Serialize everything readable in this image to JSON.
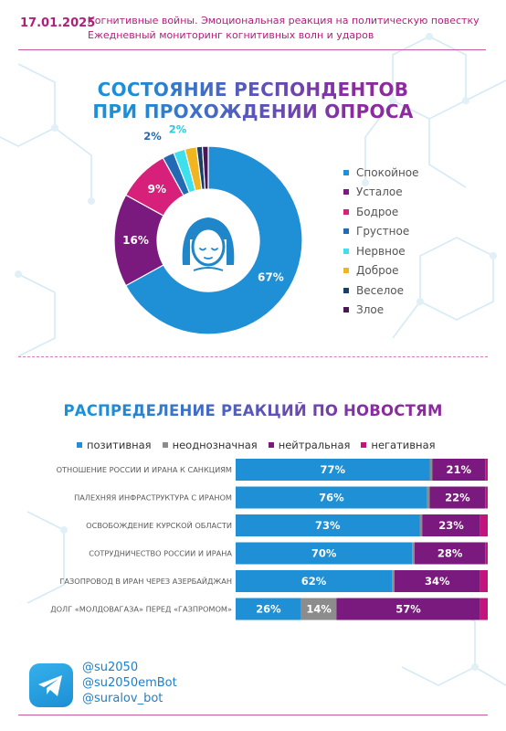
{
  "header": {
    "date": "17.01.2025",
    "line1": "Когнитивные войны. Эмоциональная реакция на политическую повестку",
    "line2": "Ежедневный мониторинг когнитивных волн и ударов"
  },
  "colors": {
    "blue": "#1f8fd6",
    "purple": "#7b1a7e",
    "pink": "#d6207a",
    "dark_blue": "#2469b3",
    "cyan": "#3fe0ee",
    "yellow": "#f0b51f",
    "navy": "#173e6d",
    "dark_purple": "#4b1656",
    "gray": "#8c8c8c",
    "magenta": "#c3147e"
  },
  "chart_data": [
    {
      "type": "pie",
      "title": "СОСТОЯНИЕ РЕСПОНДЕНТОВ ПРИ ПРОХОЖДЕНИИ ОПРОСА",
      "title_lines": [
        "СОСТОЯНИЕ РЕСПОНДЕНТОВ",
        "ПРИ ПРОХОЖДЕНИИ ОПРОСА"
      ],
      "donut": true,
      "center_icon": "woman-face-icon",
      "legend_position": "right",
      "slices": [
        {
          "label": "Спокойное",
          "value": 67,
          "display": "67%",
          "color": "#1f8fd6"
        },
        {
          "label": "Усталое",
          "value": 16,
          "display": "16%",
          "color": "#7b1a7e"
        },
        {
          "label": "Бодрое",
          "value": 9,
          "display": "9%",
          "color": "#d6207a"
        },
        {
          "label": "Грустное",
          "value": 2,
          "display": "2%",
          "color": "#2469b3"
        },
        {
          "label": "Нервное",
          "value": 2,
          "display": "2%",
          "color": "#3fe0ee"
        },
        {
          "label": "Доброе",
          "value": 2,
          "display": "",
          "color": "#f0b51f"
        },
        {
          "label": "Веселое",
          "value": 1,
          "display": "",
          "color": "#173e6d"
        },
        {
          "label": "Злое",
          "value": 1,
          "display": "",
          "color": "#4b1656"
        }
      ]
    },
    {
      "type": "bar",
      "orientation": "horizontal",
      "stacked": true,
      "title": "РАСПРЕДЕЛЕНИЕ РЕАКЦИЙ ПО НОВОСТЯМ",
      "legend_position": "top",
      "xlim": [
        0,
        100
      ],
      "categories": [
        "ОТНОШЕНИЕ РОССИИ И ИРАНА К САНКЦИЯМ",
        "ПАЛЕХНЯЯ ИНФРАСТРУКТУРА С ИРАНОМ",
        "ОСВОБОЖДЕНИЕ КУРСКОЙ ОБЛАСТИ",
        "СОТРУДНИЧЕСТВО РОССИИ И ИРАНА",
        "ГАЗОПРОВОД В ИРАН ЧЕРЕЗ АЗЕРБАЙДЖАН",
        "ДОЛГ «МОЛДОВАГАЗА» ПЕРЕД «ГАЗПРОМОМ»"
      ],
      "series": [
        {
          "name": "позитивная",
          "color": "#1f8fd6",
          "values": [
            77,
            76,
            73,
            70,
            62,
            26
          ],
          "labels": [
            "77%",
            "76%",
            "73%",
            "70%",
            "62%",
            "26%"
          ]
        },
        {
          "name": "неоднозначная",
          "color": "#8c8c8c",
          "values": [
            1,
            1,
            1,
            1,
            1,
            14
          ],
          "labels": [
            "",
            "",
            "",
            "",
            "",
            "14%"
          ]
        },
        {
          "name": "нейтральная",
          "color": "#7b1a7e",
          "values": [
            21,
            22,
            23,
            28,
            34,
            57
          ],
          "labels": [
            "21%",
            "22%",
            "23%",
            "28%",
            "34%",
            "57%"
          ]
        },
        {
          "name": "негативная",
          "color": "#c3147e",
          "values": [
            1,
            1,
            3,
            1,
            3,
            3
          ],
          "labels": [
            "",
            "",
            "",
            "",
            "",
            ""
          ]
        }
      ]
    }
  ],
  "footer": {
    "icon": "telegram-icon",
    "handles": [
      "@su2050",
      "@su2050emBot",
      "@suralov_bot"
    ]
  }
}
